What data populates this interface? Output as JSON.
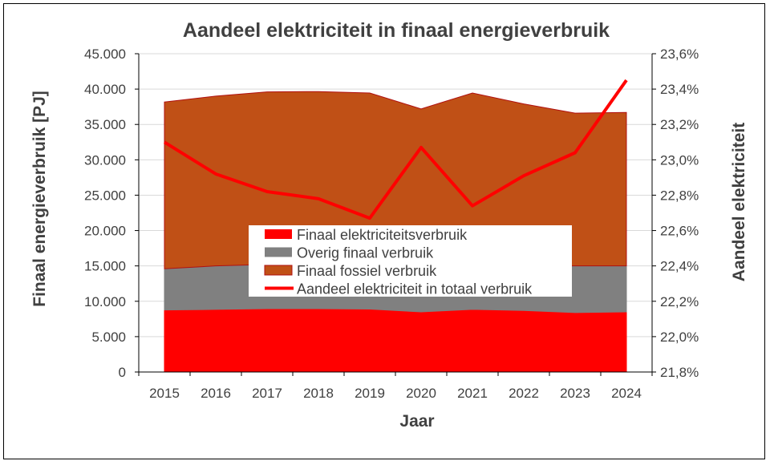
{
  "chart_data": {
    "type": "area",
    "title": "Aandeel elektriciteit in finaal energieverbruik",
    "xlabel": "Jaar",
    "ylabel": "Finaal energieverbruik [PJ]",
    "y2label": "Aandeel elektriciteit",
    "categories": [
      "2015",
      "2016",
      "2017",
      "2018",
      "2019",
      "2020",
      "2021",
      "2022",
      "2023",
      "2024"
    ],
    "ylim": [
      0,
      45000
    ],
    "yticks": [
      "0",
      "5.000",
      "10.000",
      "15.000",
      "20.000",
      "25.000",
      "30.000",
      "35.000",
      "40.000",
      "45.000"
    ],
    "y2lim": [
      21.8,
      23.6
    ],
    "y2ticks": [
      "21,8%",
      "22,0%",
      "22,2%",
      "22,4%",
      "22,6%",
      "22,8%",
      "23,0%",
      "23,2%",
      "23,4%",
      "23,6%"
    ],
    "grid": true,
    "legend_position": "center",
    "series": [
      {
        "name": "Finaal elektriciteitsverbruik",
        "type": "stacked-area",
        "axis": "left",
        "color": "#ff0000",
        "values": [
          8770,
          8850,
          8950,
          8950,
          8900,
          8500,
          8850,
          8700,
          8400,
          8500
        ]
      },
      {
        "name": "Overig finaal verbruik",
        "type": "stacked-area",
        "axis": "left",
        "color": "#808080",
        "values": [
          5830,
          6150,
          6250,
          6250,
          6200,
          6300,
          6250,
          6300,
          6600,
          6500
        ]
      },
      {
        "name": "Finaal fossiel verbruik",
        "type": "stacked-area",
        "axis": "left",
        "color": "#c05016",
        "values": [
          23570,
          24000,
          24400,
          24450,
          24350,
          22400,
          24350,
          22900,
          21600,
          21700
        ]
      },
      {
        "name": "Aandeel elektriciteit in totaal verbruik",
        "type": "line",
        "axis": "right",
        "color": "#ff0000",
        "values": [
          23.1,
          22.92,
          22.82,
          22.78,
          22.67,
          23.07,
          22.74,
          22.91,
          23.04,
          23.45
        ]
      }
    ]
  }
}
